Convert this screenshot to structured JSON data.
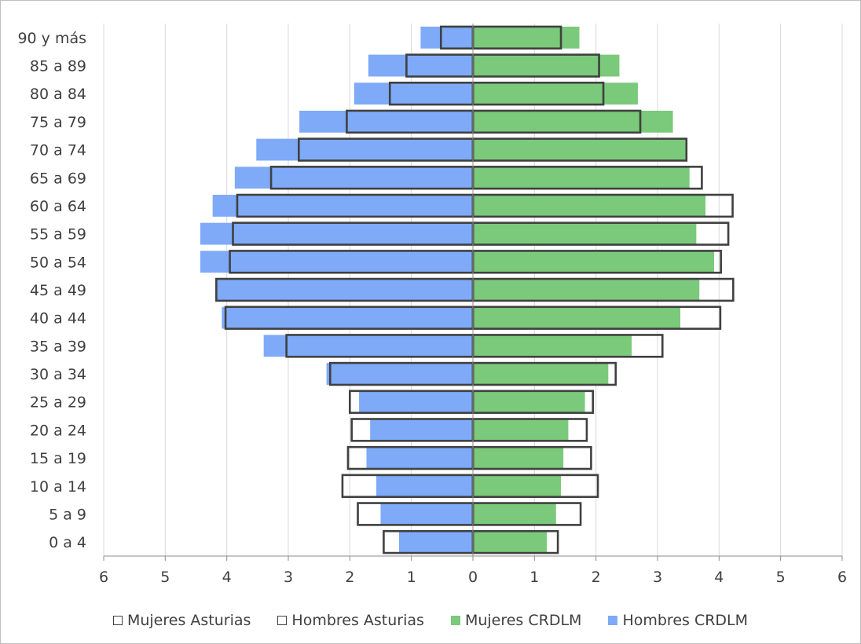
{
  "chart_data": {
    "type": "bar",
    "orientation": "horizontal",
    "categories": [
      "0 a 4",
      "5 a 9",
      "10 a 14",
      "15 a 19",
      "20 a 24",
      "25 a 29",
      "30 a 34",
      "35 a 39",
      "40 a 44",
      "45 a 49",
      "50 a 54",
      "55 a 59",
      "60 a 64",
      "65 a 69",
      "70 a 74",
      "75 a 79",
      "80 a 84",
      "85 a 89",
      "90 y más"
    ],
    "series": [
      {
        "name": "Hombres CRDLM",
        "side": "left",
        "style": "filled",
        "color": "#7eaaf8",
        "values": [
          1.2,
          1.5,
          1.57,
          1.73,
          1.67,
          1.85,
          2.38,
          3.4,
          4.08,
          4.17,
          4.43,
          4.43,
          4.23,
          3.87,
          3.52,
          2.82,
          1.93,
          1.7,
          0.85
        ]
      },
      {
        "name": "Mujeres CRDLM",
        "side": "right",
        "style": "filled",
        "color": "#7bc97a",
        "values": [
          1.2,
          1.35,
          1.43,
          1.47,
          1.55,
          1.82,
          2.2,
          2.58,
          3.37,
          3.68,
          3.92,
          3.63,
          3.78,
          3.52,
          3.47,
          3.25,
          2.68,
          2.38,
          1.73
        ]
      },
      {
        "name": "Hombres Asturias",
        "side": "left",
        "style": "outline",
        "color": "#404040",
        "values": [
          1.45,
          1.87,
          2.12,
          2.03,
          1.97,
          2.0,
          2.32,
          3.03,
          4.02,
          4.17,
          3.95,
          3.9,
          3.83,
          3.28,
          2.83,
          2.05,
          1.35,
          1.08,
          0.52
        ]
      },
      {
        "name": "Mujeres Asturias",
        "side": "right",
        "style": "outline",
        "color": "#404040",
        "values": [
          1.38,
          1.75,
          2.03,
          1.92,
          1.85,
          1.95,
          2.32,
          3.08,
          4.02,
          4.23,
          4.03,
          4.15,
          4.22,
          3.72,
          3.47,
          2.72,
          2.12,
          2.05,
          1.43
        ]
      }
    ],
    "x_ticks": [
      "6",
      "5",
      "4",
      "3",
      "2",
      "1",
      "0",
      "1",
      "2",
      "3",
      "4",
      "5",
      "6"
    ],
    "xlim": [
      -6,
      6
    ],
    "grid": true,
    "legend_position": "bottom",
    "legend": [
      "Mujeres Asturias",
      "Hombres Asturias",
      "Mujeres CRDLM",
      "Hombres CRDLM"
    ]
  }
}
